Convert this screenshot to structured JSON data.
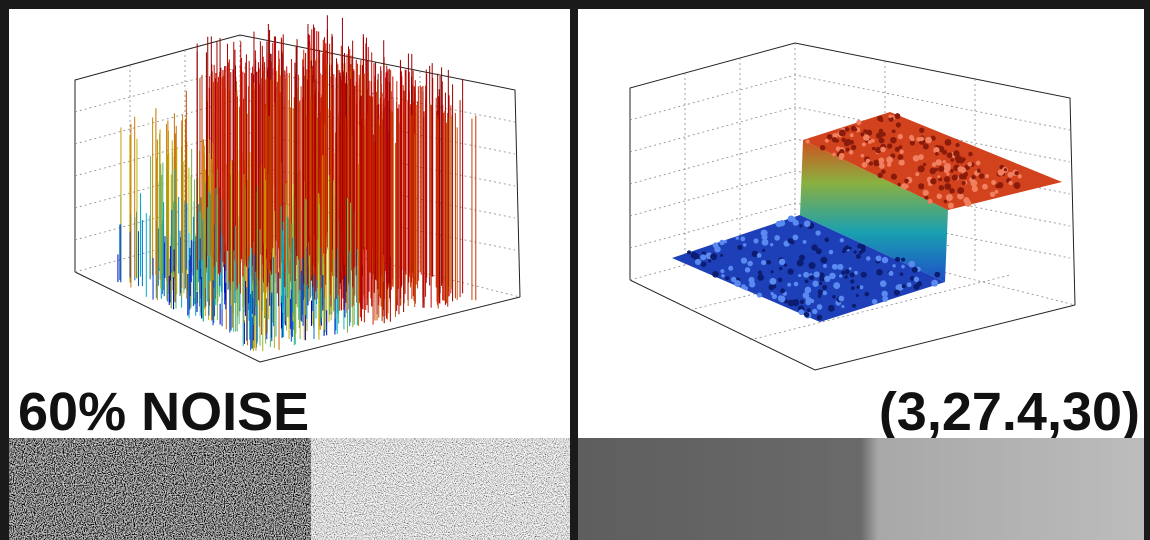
{
  "panels": [
    {
      "label": "60% NOISE"
    },
    {
      "label": "(3,27.4,30)"
    }
  ]
}
